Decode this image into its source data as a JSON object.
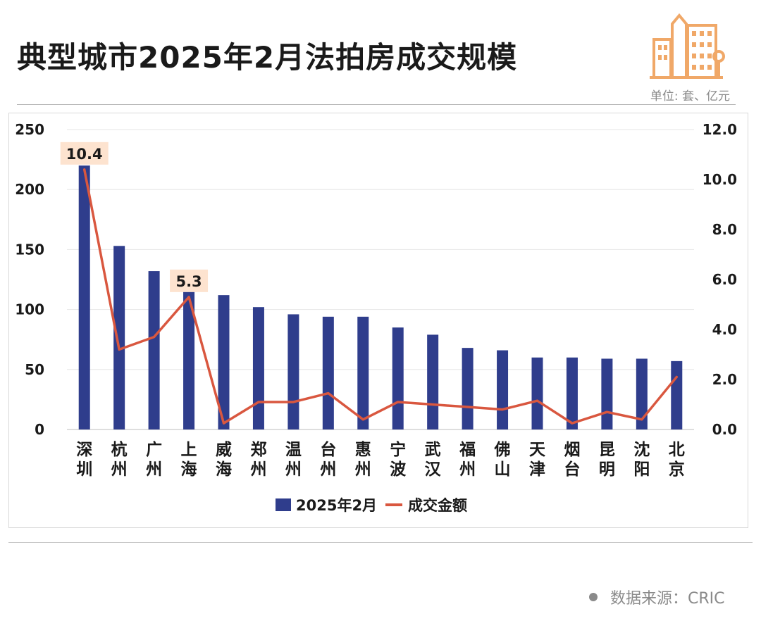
{
  "title": "典型城市2025年2月法拍房成交规模",
  "unit_label": "单位: 套、亿元",
  "source_label": "数据来源：CRIC",
  "icon": "city-buildings-icon",
  "colors": {
    "bar": "#2f3d8c",
    "line": "#d9573f",
    "callout_bg": "#fde3cf",
    "icon": "#f0a868"
  },
  "chart_data": {
    "type": "bar",
    "categories": [
      "深圳",
      "杭州",
      "广州",
      "上海",
      "威海",
      "郑州",
      "温州",
      "台州",
      "惠州",
      "宁波",
      "武汉",
      "福州",
      "佛山",
      "天津",
      "烟台",
      "昆明",
      "沈阳",
      "北京"
    ],
    "series": [
      {
        "name": "2025年2月",
        "type": "bar",
        "axis": "left",
        "values": [
          220,
          153,
          132,
          116,
          112,
          102,
          96,
          94,
          94,
          85,
          79,
          68,
          66,
          60,
          60,
          59,
          59,
          57
        ]
      },
      {
        "name": "成交金额",
        "type": "line",
        "axis": "right",
        "values": [
          10.4,
          3.2,
          3.7,
          5.3,
          0.25,
          1.1,
          1.1,
          1.45,
          0.4,
          1.1,
          1.0,
          0.9,
          0.8,
          1.15,
          0.25,
          0.7,
          0.4,
          2.1
        ]
      }
    ],
    "data_labels": [
      {
        "category": "深圳",
        "text": "10.4"
      },
      {
        "category": "上海",
        "text": "5.3"
      }
    ],
    "yaxis_left": {
      "ticks": [
        "0",
        "50",
        "100",
        "150",
        "200",
        "250"
      ],
      "range": [
        0,
        250
      ]
    },
    "yaxis_right": {
      "ticks": [
        "0.0",
        "2.0",
        "4.0",
        "6.0",
        "8.0",
        "10.0",
        "12.0"
      ],
      "range": [
        0,
        12
      ]
    },
    "grid": true,
    "legend_position": "bottom"
  }
}
